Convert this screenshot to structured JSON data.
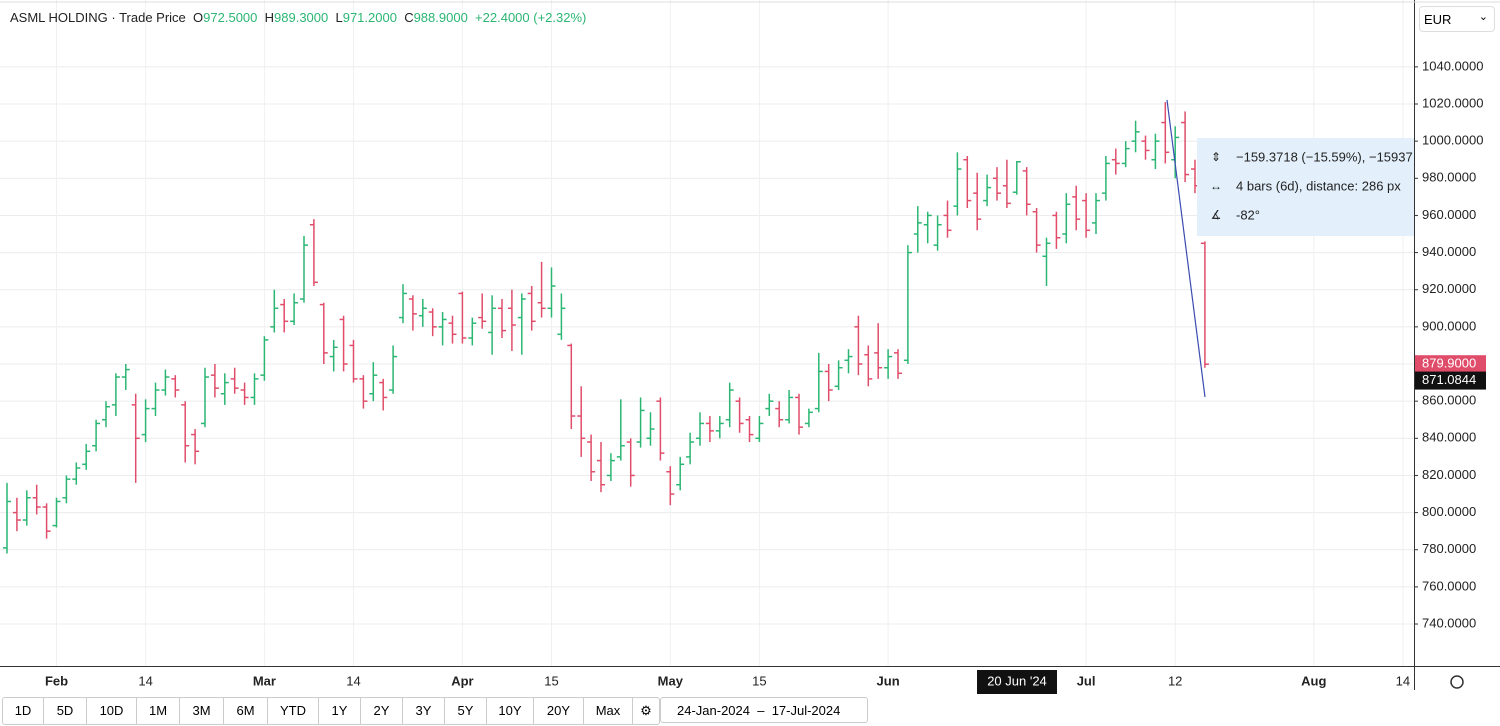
{
  "header": {
    "title": "ASML HOLDING · Trade Price",
    "o_label": "O",
    "o": "972.5000",
    "h_label": "H",
    "h": "989.3000",
    "l_label": "L",
    "l": "971.2000",
    "c_label": "C",
    "c": "988.9000",
    "change": "+22.4000 (+2.32%)"
  },
  "currency": "EUR",
  "toolbar": {
    "ranges": [
      "1D",
      "5D",
      "10D",
      "1M",
      "3M",
      "6M",
      "YTD",
      "1Y",
      "2Y",
      "3Y",
      "5Y",
      "10Y",
      "20Y",
      "Max"
    ],
    "date_from": "24-Jan-2024",
    "date_to": "17-Jul-2024"
  },
  "measure": {
    "price_change": "−159.3718 (−15.59%), −15937",
    "bars": "4 bars (6d), distance: 286 px",
    "angle": "-82°"
  },
  "chart_data": {
    "type": "ohlc",
    "up_color": "#2bb673",
    "down_color": "#e04d6a",
    "grid": true,
    "x": [
      "2024-01-25",
      "2024-01-26",
      "2024-01-29",
      "2024-01-30",
      "2024-01-31",
      "2024-02-01",
      "2024-02-02",
      "2024-02-05",
      "2024-02-06",
      "2024-02-07",
      "2024-02-08",
      "2024-02-09",
      "2024-02-12",
      "2024-02-13",
      "2024-02-14",
      "2024-02-15",
      "2024-02-16",
      "2024-02-19",
      "2024-02-20",
      "2024-02-21",
      "2024-02-22",
      "2024-02-23",
      "2024-02-26",
      "2024-02-27",
      "2024-02-28",
      "2024-02-29",
      "2024-03-01",
      "2024-03-04",
      "2024-03-05",
      "2024-03-06",
      "2024-03-07",
      "2024-03-08",
      "2024-03-11",
      "2024-03-12",
      "2024-03-13",
      "2024-03-14",
      "2024-03-15",
      "2024-03-18",
      "2024-03-19",
      "2024-03-20",
      "2024-03-21",
      "2024-03-22",
      "2024-03-25",
      "2024-03-26",
      "2024-03-27",
      "2024-03-28",
      "2024-04-02",
      "2024-04-03",
      "2024-04-04",
      "2024-04-05",
      "2024-04-08",
      "2024-04-09",
      "2024-04-10",
      "2024-04-11",
      "2024-04-12",
      "2024-04-15",
      "2024-04-16",
      "2024-04-17",
      "2024-04-18",
      "2024-04-19",
      "2024-04-22",
      "2024-04-23",
      "2024-04-24",
      "2024-04-25",
      "2024-04-26",
      "2024-04-29",
      "2024-04-30",
      "2024-05-02",
      "2024-05-03",
      "2024-05-06",
      "2024-05-07",
      "2024-05-08",
      "2024-05-09",
      "2024-05-10",
      "2024-05-13",
      "2024-05-14",
      "2024-05-15",
      "2024-05-16",
      "2024-05-17",
      "2024-05-20",
      "2024-05-21",
      "2024-05-22",
      "2024-05-23",
      "2024-05-24",
      "2024-05-27",
      "2024-05-28",
      "2024-05-29",
      "2024-05-30",
      "2024-05-31",
      "2024-06-03",
      "2024-06-04",
      "2024-06-05",
      "2024-06-06",
      "2024-06-07",
      "2024-06-10",
      "2024-06-11",
      "2024-06-12",
      "2024-06-13",
      "2024-06-14",
      "2024-06-17",
      "2024-06-18",
      "2024-06-19",
      "2024-06-20",
      "2024-06-21",
      "2024-06-24",
      "2024-06-25",
      "2024-06-26",
      "2024-06-27",
      "2024-06-28",
      "2024-07-01",
      "2024-07-02",
      "2024-07-03",
      "2024-07-04",
      "2024-07-05",
      "2024-07-08",
      "2024-07-09",
      "2024-07-10",
      "2024-07-11",
      "2024-07-12",
      "2024-07-15",
      "2024-07-16",
      "2024-07-17"
    ],
    "open": [
      781,
      800,
      796,
      808,
      803,
      793,
      808,
      818,
      826,
      836,
      850,
      858,
      873,
      858,
      842,
      856,
      866,
      872,
      858,
      842,
      848,
      874,
      864,
      872,
      866,
      862,
      874,
      900,
      912,
      903,
      915,
      955,
      912,
      884,
      904,
      890,
      872,
      864,
      870,
      866,
      905,
      915,
      906,
      908,
      900,
      902,
      918,
      894,
      905,
      897,
      910,
      910,
      905,
      918,
      913,
      910,
      896,
      890,
      852,
      838,
      828,
      820,
      830,
      838,
      838,
      840,
      860,
      822,
      815,
      830,
      840,
      848,
      844,
      850,
      860,
      850,
      840,
      856,
      856,
      850,
      862,
      848,
      856,
      876,
      868,
      882,
      900,
      885,
      886,
      878,
      886,
      882,
      950,
      955,
      944,
      960,
      965,
      990,
      972,
      968,
      980,
      976,
      972.5,
      984,
      962,
      938,
      960,
      950,
      970,
      968,
      956,
      972,
      990,
      988,
      1000,
      1000,
      990,
      1010,
      990,
      1010,
      985,
      945
    ],
    "high": [
      816,
      808,
      812,
      815,
      805,
      808,
      820,
      827,
      837,
      850,
      860,
      875,
      880,
      864,
      861,
      870,
      877,
      874,
      860,
      845,
      878,
      880,
      875,
      878,
      870,
      875,
      895,
      920,
      915,
      918,
      949,
      958,
      913,
      893,
      906,
      893,
      874,
      881,
      872,
      890,
      923,
      917,
      915,
      910,
      908,
      906,
      919,
      905,
      918,
      917,
      915,
      920,
      918,
      922,
      935,
      932,
      918,
      891,
      868,
      842,
      838,
      832,
      861,
      840,
      862,
      854,
      862,
      825,
      830,
      843,
      854,
      852,
      852,
      870,
      862,
      852,
      852,
      864,
      860,
      866,
      864,
      856,
      886,
      880,
      882,
      888,
      906,
      890,
      902,
      888,
      888,
      944,
      965,
      962,
      960,
      968,
      994,
      992,
      983,
      982,
      986,
      990,
      989.3,
      986,
      964,
      948,
      962,
      972,
      976,
      972,
      972,
      992,
      996,
      1000,
      1011,
      1003,
      1004,
      1021,
      1008,
      1016,
      990,
      946
    ],
    "low": [
      778,
      790,
      793,
      799,
      786,
      792,
      805,
      815,
      823,
      833,
      846,
      852,
      866,
      816,
      838,
      852,
      863,
      862,
      827,
      826,
      846,
      862,
      858,
      864,
      858,
      858,
      871,
      897,
      897,
      901,
      913,
      922,
      880,
      876,
      876,
      870,
      856,
      860,
      855,
      864,
      902,
      898,
      900,
      895,
      890,
      891,
      891,
      890,
      899,
      885,
      894,
      887,
      885,
      898,
      905,
      905,
      893,
      845,
      830,
      817,
      811,
      817,
      828,
      814,
      835,
      836,
      828,
      804,
      812,
      826,
      836,
      838,
      840,
      846,
      843,
      838,
      838,
      852,
      846,
      848,
      842,
      846,
      854,
      860,
      866,
      875,
      874,
      868,
      872,
      872,
      872,
      880,
      940,
      945,
      941,
      948,
      960,
      964,
      952,
      965,
      968,
      964,
      971.2,
      960,
      940,
      922,
      942,
      945,
      952,
      948,
      950,
      968,
      982,
      986,
      994,
      990,
      985,
      988,
      980,
      978,
      972,
      878
    ],
    "close": [
      806,
      796,
      808,
      803,
      790,
      806,
      818,
      824,
      833,
      848,
      857,
      873,
      877,
      840,
      856,
      866,
      873,
      866,
      836,
      833,
      873,
      867,
      870,
      867,
      862,
      872,
      893,
      910,
      903,
      913,
      944,
      924,
      886,
      889,
      880,
      872,
      860,
      874,
      862,
      884,
      918,
      907,
      910,
      900,
      904,
      896,
      894,
      902,
      903,
      910,
      898,
      901,
      915,
      903,
      910,
      922,
      910,
      852,
      840,
      822,
      815,
      828,
      836,
      820,
      855,
      845,
      832,
      810,
      826,
      838,
      848,
      844,
      848,
      866,
      848,
      842,
      848,
      860,
      850,
      862,
      846,
      854,
      876,
      866,
      878,
      884,
      880,
      872,
      878,
      884,
      875,
      940,
      956,
      960,
      955,
      952,
      985,
      968,
      958,
      975,
      972,
      966.5,
      988.9,
      966,
      944,
      945,
      948,
      966,
      958,
      952,
      968,
      988,
      988,
      996,
      1005,
      995,
      1000,
      994,
      1002,
      982,
      976,
      879.9
    ],
    "ylim": [
      717.4,
      1076
    ],
    "yticks": [
      {
        "value": 740,
        "label": "740.0000"
      },
      {
        "value": 760,
        "label": "760.0000"
      },
      {
        "value": 780,
        "label": "780.0000"
      },
      {
        "value": 800,
        "label": "800.0000"
      },
      {
        "value": 820,
        "label": "820.0000"
      },
      {
        "value": 840,
        "label": "840.0000"
      },
      {
        "value": 860,
        "label": "860.0000"
      },
      {
        "value": 880,
        "label": "880.0000"
      },
      {
        "value": 900,
        "label": "900.0000"
      },
      {
        "value": 920,
        "label": "920.0000"
      },
      {
        "value": 940,
        "label": "940.0000"
      },
      {
        "value": 960,
        "label": "960.0000"
      },
      {
        "value": 980,
        "label": "980.0000"
      },
      {
        "value": 1000,
        "label": "1000.0000"
      },
      {
        "value": 1020,
        "label": "1020.0000"
      },
      {
        "value": 1040,
        "label": "1040.0000"
      }
    ],
    "xticks": [
      {
        "value": "2024-02-01",
        "label": "Feb"
      },
      {
        "value": "2024-02-14",
        "label": "14"
      },
      {
        "value": "2024-03-01",
        "label": "Mar"
      },
      {
        "value": "2024-03-14",
        "label": "14"
      },
      {
        "value": "2024-04-01",
        "label": "Apr"
      },
      {
        "value": "2024-04-15",
        "label": "15"
      },
      {
        "value": "2024-05-01",
        "label": "May"
      },
      {
        "value": "2024-05-15",
        "label": "15"
      },
      {
        "value": "2024-06-01",
        "label": "Jun"
      },
      {
        "value": "2024-07-01",
        "label": "Jul"
      },
      {
        "value": "2024-07-12",
        "label": "12"
      },
      {
        "value": "2024-08-01",
        "label": "Aug"
      },
      {
        "value": "2024-08-14",
        "label": "14"
      }
    ],
    "last_price": {
      "value": 879.9,
      "label": "879.9000"
    },
    "crosshair_price": {
      "value": 871.0844,
      "label": "871.0844"
    },
    "crosshair_date": "20 Jun '24"
  }
}
